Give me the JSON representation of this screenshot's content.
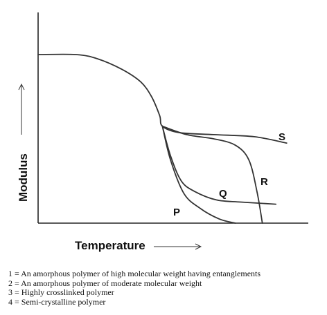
{
  "chart_data": {
    "type": "line",
    "xlabel": "Temperature",
    "ylabel": "Modulus",
    "series": [
      {
        "name": "S",
        "points": [
          [
            0.0,
            0.8
          ],
          [
            0.14,
            0.8
          ],
          [
            0.22,
            0.78
          ],
          [
            0.31,
            0.73
          ],
          [
            0.38,
            0.67
          ],
          [
            0.42,
            0.6
          ],
          [
            0.45,
            0.51
          ],
          [
            0.46,
            0.46
          ],
          [
            0.52,
            0.43
          ],
          [
            0.65,
            0.42
          ],
          [
            0.8,
            0.41
          ],
          [
            0.92,
            0.38
          ]
        ]
      },
      {
        "name": "R",
        "points": [
          [
            0.46,
            0.46
          ],
          [
            0.55,
            0.42
          ],
          [
            0.65,
            0.4
          ],
          [
            0.73,
            0.37
          ],
          [
            0.78,
            0.3
          ],
          [
            0.81,
            0.15
          ],
          [
            0.83,
            0.0
          ]
        ]
      },
      {
        "name": "Q",
        "points": [
          [
            0.46,
            0.46
          ],
          [
            0.49,
            0.32
          ],
          [
            0.53,
            0.2
          ],
          [
            0.58,
            0.15
          ],
          [
            0.66,
            0.11
          ],
          [
            0.75,
            0.1
          ],
          [
            0.88,
            0.09
          ]
        ]
      },
      {
        "name": "P",
        "points": [
          [
            0.46,
            0.46
          ],
          [
            0.49,
            0.3
          ],
          [
            0.54,
            0.14
          ],
          [
            0.6,
            0.07
          ],
          [
            0.67,
            0.02
          ],
          [
            0.73,
            0.0
          ]
        ]
      }
    ],
    "legend": [
      "1 = An amorphous polymer of high molecular weight having entanglements",
      "2 = An amorphous polymer of moderate molecular weight",
      "3 = Highly crosslinked polymer",
      "4 = Semi-crystalline polymer"
    ],
    "grid": false
  }
}
